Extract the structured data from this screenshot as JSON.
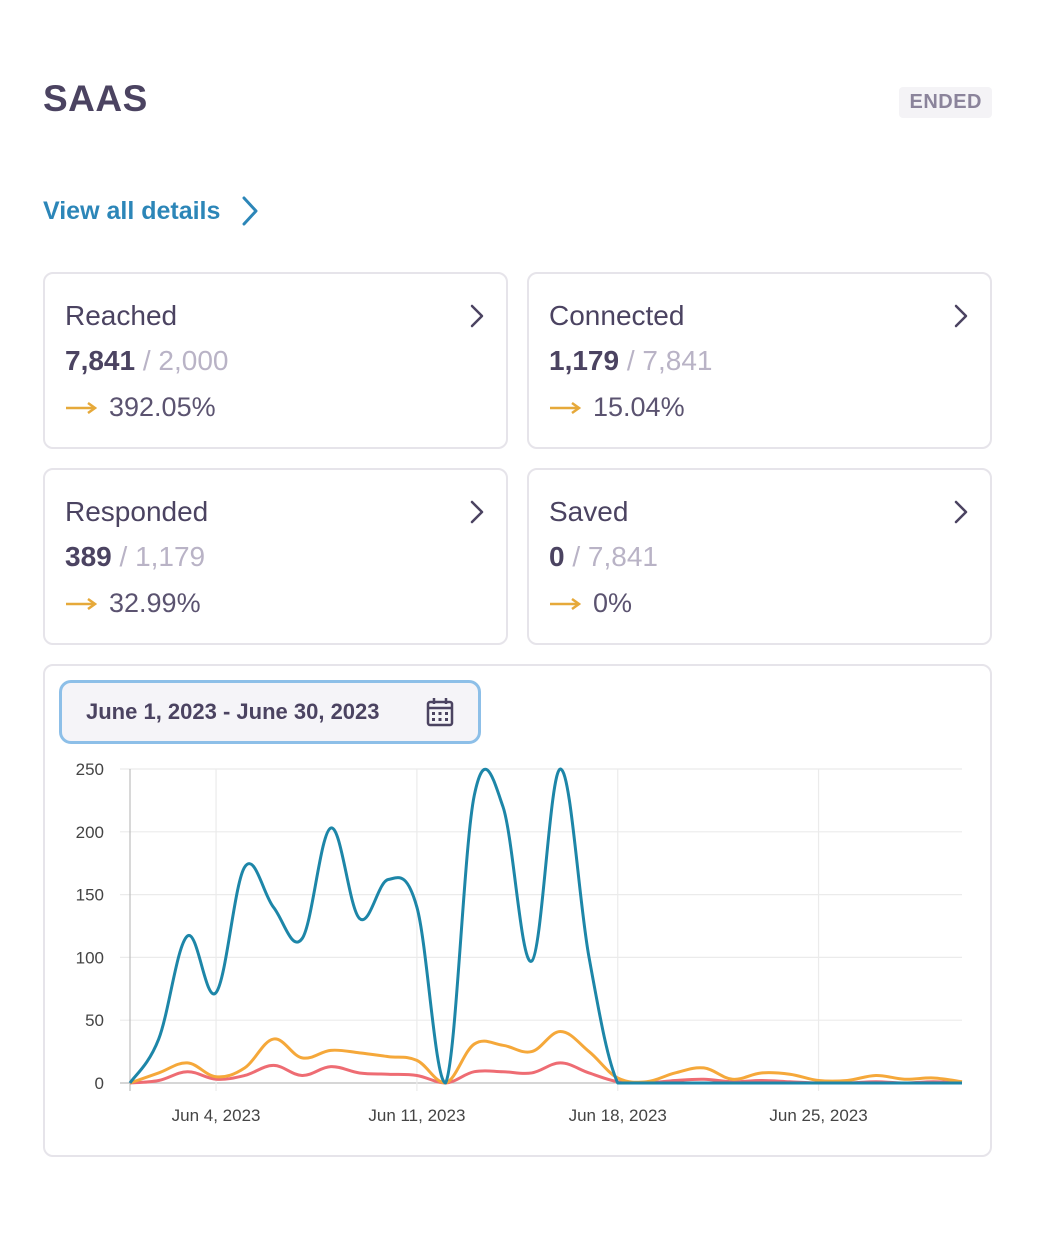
{
  "header": {
    "title": "SAAS",
    "status": "ENDED"
  },
  "link": {
    "label": "View all details"
  },
  "stats": [
    {
      "label": "Reached",
      "value": "7,841",
      "total": "2,000",
      "rate": "392.05%"
    },
    {
      "label": "Connected",
      "value": "1,179",
      "total": "7,841",
      "rate": "15.04%"
    },
    {
      "label": "Responded",
      "value": "389",
      "total": "1,179",
      "rate": "32.99%"
    },
    {
      "label": "Saved",
      "value": "0",
      "total": "7,841",
      "rate": "0%"
    }
  ],
  "date_filter": {
    "label": "June 1, 2023 - June 30, 2023"
  },
  "colors": {
    "accent": "#2c86b8",
    "arrow": "#e6a93a",
    "series_blue": "#1d86a8",
    "series_orange": "#f5a83a",
    "series_red": "#ee6c73"
  },
  "chart_data": {
    "type": "line",
    "x": [
      "Jun 1",
      "Jun 2",
      "Jun 3",
      "Jun 4",
      "Jun 5",
      "Jun 6",
      "Jun 7",
      "Jun 8",
      "Jun 9",
      "Jun 10",
      "Jun 11",
      "Jun 12",
      "Jun 13",
      "Jun 14",
      "Jun 15",
      "Jun 16",
      "Jun 17",
      "Jun 18",
      "Jun 19",
      "Jun 20",
      "Jun 21",
      "Jun 22",
      "Jun 23",
      "Jun 24",
      "Jun 25",
      "Jun 26",
      "Jun 27",
      "Jun 28",
      "Jun 29",
      "Jun 30"
    ],
    "x_ticks": [
      {
        "label": "Jun 4, 2023",
        "index": 3
      },
      {
        "label": "Jun 11, 2023",
        "index": 10
      },
      {
        "label": "Jun 18, 2023",
        "index": 17
      },
      {
        "label": "Jun 25, 2023",
        "index": 24
      }
    ],
    "yticks": [
      0,
      50,
      100,
      150,
      200,
      250
    ],
    "ylim": [
      0,
      250
    ],
    "grid": true,
    "series": [
      {
        "color": "#1d86a8",
        "values": [
          0,
          35,
          117,
          72,
          172,
          140,
          115,
          203,
          131,
          162,
          140,
          0,
          229,
          220,
          97,
          250,
          100,
          0,
          0,
          0,
          0,
          0,
          0,
          0,
          0,
          0,
          0,
          0,
          0,
          0
        ]
      },
      {
        "color": "#f5a83a",
        "values": [
          0,
          8,
          16,
          5,
          12,
          35,
          20,
          26,
          24,
          21,
          18,
          0,
          31,
          30,
          25,
          41,
          25,
          4,
          1,
          8,
          12,
          3,
          8,
          7,
          2,
          2,
          6,
          3,
          4,
          1
        ]
      },
      {
        "color": "#ee6c73",
        "values": [
          0,
          2,
          9,
          3,
          6,
          14,
          6,
          13,
          8,
          7,
          6,
          0,
          9,
          9,
          8,
          16,
          8,
          1,
          0,
          2,
          3,
          1,
          2,
          1,
          0,
          0,
          1,
          0,
          1,
          0
        ]
      }
    ]
  }
}
